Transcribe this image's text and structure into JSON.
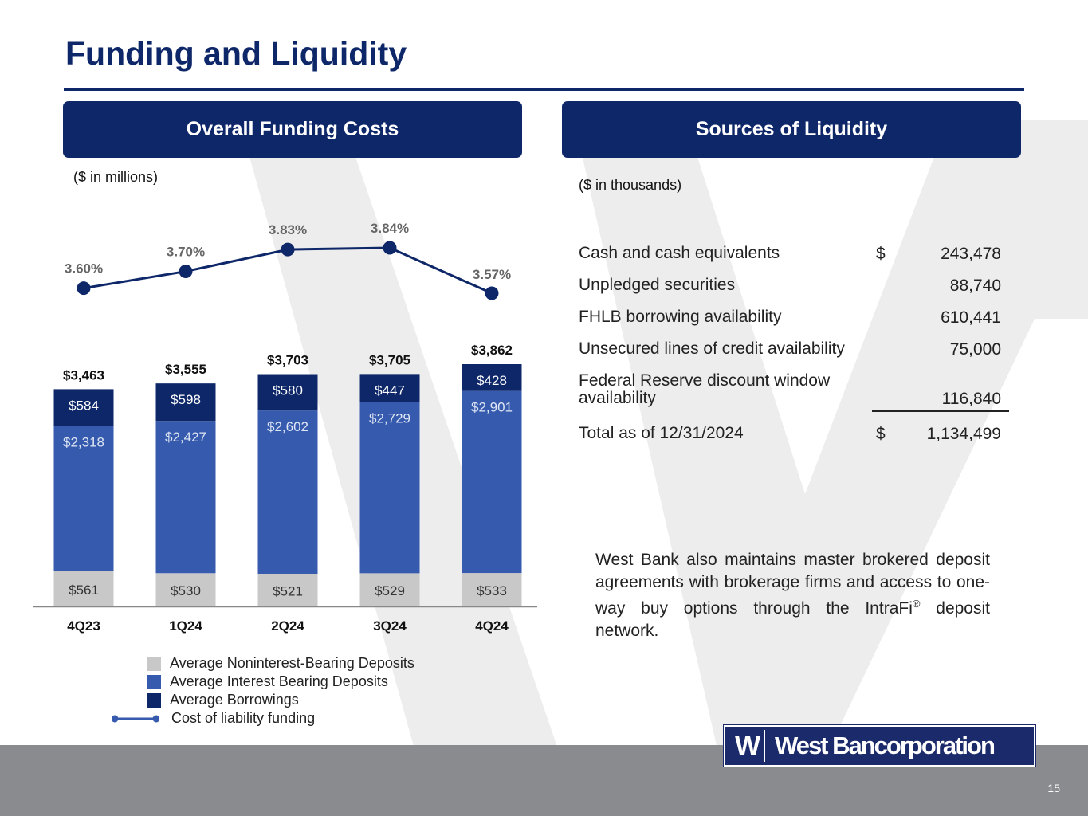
{
  "title": "Funding and Liquidity",
  "left_panel": {
    "header": "Overall Funding Costs",
    "unit_note": "($ in millions)"
  },
  "right_panel": {
    "header": "Sources of Liquidity",
    "unit_note": "($ in thousands)"
  },
  "colors": {
    "navy": "#0e2769",
    "interest": "#365aad",
    "nonint": "#c8c8c9",
    "borrow": "#0e2769",
    "line": "#0e2769",
    "footer": "#8a8b8f"
  },
  "chart_data": {
    "type": "bar",
    "stacked": true,
    "categories": [
      "4Q23",
      "1Q24",
      "2Q24",
      "3Q24",
      "4Q24"
    ],
    "series": [
      {
        "name": "Average Noninterest-Bearing Deposits",
        "values": [
          561,
          530,
          521,
          529,
          533
        ],
        "labels": [
          "$561",
          "$530",
          "$521",
          "$529",
          "$533"
        ]
      },
      {
        "name": "Average Interest Bearing Deposits",
        "values": [
          2318,
          2427,
          2602,
          2729,
          2901
        ],
        "labels": [
          "$2,318",
          "$2,427",
          "$2,602",
          "$2,729",
          "$2,901"
        ]
      },
      {
        "name": "Average Borrowings",
        "values": [
          584,
          598,
          580,
          447,
          428
        ],
        "labels": [
          "$584",
          "$598",
          "$580",
          "$447",
          "$428"
        ]
      }
    ],
    "totals": [
      3463,
      3555,
      3703,
      3705,
      3862
    ],
    "total_labels": [
      "$3,463",
      "$3,555",
      "$3,703",
      "$3,705",
      "$3,862"
    ],
    "line": {
      "name": "Cost of liability funding",
      "values": [
        3.6,
        3.7,
        3.83,
        3.84,
        3.57
      ],
      "labels": [
        "3.60%",
        "3.70%",
        "3.83%",
        "3.84%",
        "3.57%"
      ]
    },
    "ylim": [
      0,
      3862
    ],
    "legend_position": "bottom"
  },
  "legend": [
    {
      "label": "Average Noninterest-Bearing Deposits"
    },
    {
      "label": "Average Interest Bearing Deposits"
    },
    {
      "label": "Average Borrowings"
    },
    {
      "label": "Cost of liability funding"
    }
  ],
  "liquidity": {
    "rows": [
      {
        "label": "Cash and cash equivalents",
        "dollar": "$",
        "value": "243,478"
      },
      {
        "label": "Unpledged securities",
        "dollar": "",
        "value": "88,740"
      },
      {
        "label": "FHLB borrowing availability",
        "dollar": "",
        "value": "610,441"
      },
      {
        "label": "Unsecured lines of credit availability",
        "dollar": "",
        "value": "75,000"
      },
      {
        "label": "Federal Reserve discount window availability",
        "dollar": "",
        "value": "116,840"
      }
    ],
    "total": {
      "label": "Total as of 12/31/2024",
      "dollar": "$",
      "value": "1,134,499"
    }
  },
  "note": {
    "text_before": "West Bank also maintains master brokered deposit agreements with brokerage firms and access to one-way buy options through the IntraFi",
    "registered": "®",
    "text_after": " deposit network."
  },
  "logo": {
    "mark": "W",
    "name": "West Bancorporation"
  },
  "page_number": "15"
}
